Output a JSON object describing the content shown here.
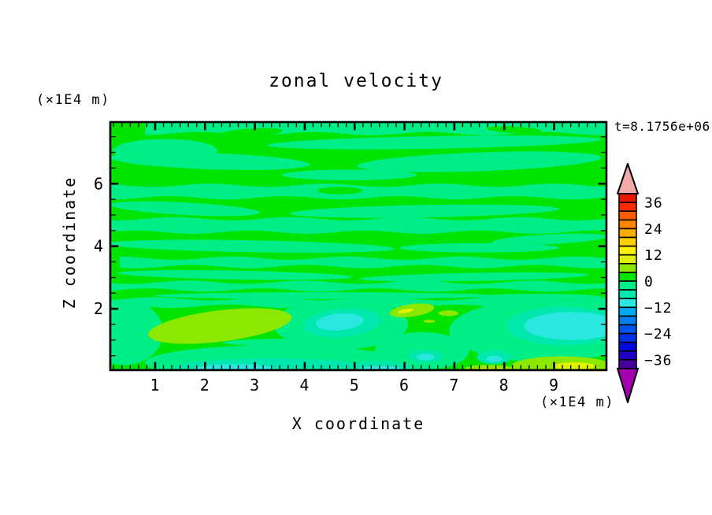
{
  "chart_data": {
    "type": "heatmap",
    "subtype": "filled_contour",
    "title": "zonal velocity",
    "t_annotation": "t=8.1756e+06",
    "xlabel": "X coordinate",
    "ylabel": "Z coordinate",
    "x_unit": "(×1E4 m)",
    "y_unit": "(×1E4 m)",
    "x_major_ticks": [
      1,
      2,
      3,
      4,
      5,
      6,
      7,
      8,
      9
    ],
    "z_major_ticks": [
      2,
      4,
      6
    ],
    "x_range": [
      0.1,
      10.05
    ],
    "z_range": [
      0.04,
      7.97
    ],
    "x_minor_per_unit": 6,
    "z_minor_step": 0.5,
    "levels": {
      "min": -40,
      "max": 40,
      "step": 4
    },
    "colorbar_labels": [
      36,
      24,
      12,
      0,
      -12,
      -24,
      -36
    ],
    "palette_top_to_bottom": [
      "#e81800",
      "#ff2a00",
      "#ff5c00",
      "#ff8700",
      "#ffab00",
      "#ffcf00",
      "#fff200",
      "#dff200",
      "#8ce800",
      "#00e400",
      "#00ee87",
      "#00e8ad",
      "#2ae8e0",
      "#00aaf2",
      "#0080f2",
      "#0055f0",
      "#0030e8",
      "#0008e0",
      "#2000c0",
      "#46009d"
    ],
    "over_color": "#f4a9a9",
    "under_color": "#a000b0",
    "background_band_value": 2,
    "field_summary": "Zonal velocity cross-section: mostly near-zero values forming wavy horizontal stripes alternating between the 0..4 band (green) and -4..0 band (spring green); below z=2 appear stronger features: positive patches (4..12, chartreuse/yellow) and negative patches (-4..-12, teal/cyan).",
    "features": [
      {
        "v": -2,
        "b": [
          0.8,
          10.05,
          7.6,
          8.02,
          0.5
        ]
      },
      {
        "v": -2,
        "e": [
          6.6,
          7.32,
          3.35,
          0.2,
          -1
        ]
      },
      {
        "v": -2,
        "e": [
          1.2,
          7.05,
          1.05,
          0.38,
          0
        ]
      },
      {
        "v": -2,
        "e": [
          2.1,
          6.72,
          2.0,
          0.26,
          2
        ]
      },
      {
        "v": -2,
        "e": [
          7.5,
          6.7,
          2.45,
          0.3,
          -2
        ]
      },
      {
        "v": -2,
        "e": [
          4.9,
          6.28,
          1.35,
          0.17,
          0
        ]
      },
      {
        "v": -2,
        "b": [
          0.05,
          10.05,
          5.55,
          5.95,
          2.1
        ]
      },
      {
        "v": -2,
        "e": [
          1.6,
          5.2,
          1.5,
          0.2,
          3
        ]
      },
      {
        "v": -2,
        "e": [
          6.4,
          5.12,
          2.7,
          0.2,
          -1
        ]
      },
      {
        "v": -2,
        "b": [
          0.05,
          10.05,
          4.45,
          4.88,
          4.0
        ]
      },
      {
        "v": -2,
        "e": [
          8.9,
          4.22,
          1.15,
          0.16,
          -3
        ]
      },
      {
        "v": -2,
        "e": [
          2.9,
          4.0,
          2.9,
          0.19,
          1
        ]
      },
      {
        "v": -2,
        "e": [
          7.5,
          3.95,
          1.6,
          0.15,
          0
        ]
      },
      {
        "v": -2,
        "b": [
          0.28,
          10.05,
          3.35,
          3.62,
          0.9
        ]
      },
      {
        "v": -2,
        "e": [
          2.6,
          3.08,
          2.35,
          0.14,
          1
        ]
      },
      {
        "v": -2,
        "e": [
          7.4,
          3.02,
          2.3,
          0.13,
          -1
        ]
      },
      {
        "v": -2,
        "b": [
          0.05,
          10.05,
          2.6,
          2.85,
          3.3
        ]
      },
      {
        "v": -2,
        "e": [
          4.4,
          2.42,
          3.4,
          0.11,
          0
        ]
      },
      {
        "v": -2,
        "e": [
          8.7,
          2.38,
          1.25,
          0.1,
          0
        ]
      },
      {
        "v": -2,
        "b": [
          0.05,
          10.05,
          2.08,
          2.32,
          5.2
        ]
      },
      {
        "v": -2,
        "e": [
          0.38,
          1.25,
          0.78,
          1.05,
          0
        ]
      },
      {
        "v": -2,
        "e": [
          4.72,
          1.5,
          1.35,
          0.8,
          0
        ]
      },
      {
        "v": -2,
        "e": [
          8.8,
          1.3,
          1.9,
          1.0,
          0
        ]
      },
      {
        "v": -2,
        "e": [
          3.4,
          0.28,
          2.6,
          0.55,
          0
        ]
      },
      {
        "v": -2,
        "e": [
          6.35,
          0.65,
          0.95,
          0.6,
          0
        ]
      },
      {
        "v": -2,
        "e": [
          4.05,
          0.92,
          1.7,
          0.13,
          0
        ]
      },
      {
        "v": 2,
        "e": [
          2.9,
          7.62,
          0.65,
          0.14,
          -4
        ]
      },
      {
        "v": 2,
        "e": [
          8.2,
          7.72,
          0.55,
          0.11,
          3
        ]
      },
      {
        "v": 2,
        "e": [
          4.7,
          5.78,
          0.45,
          0.12,
          0
        ]
      },
      {
        "v": 6,
        "e": [
          2.3,
          1.45,
          1.45,
          0.5,
          -7
        ]
      },
      {
        "v": 6,
        "e": [
          6.15,
          1.95,
          0.45,
          0.2,
          -8
        ]
      },
      {
        "v": 6,
        "e": [
          6.88,
          1.86,
          0.2,
          0.09,
          0
        ]
      },
      {
        "v": 6,
        "e": [
          6.5,
          1.6,
          0.12,
          0.05,
          0
        ]
      },
      {
        "v": 6,
        "e": [
          9.15,
          0.18,
          1.0,
          0.3,
          0
        ]
      },
      {
        "v": 6,
        "e": [
          4.4,
          0.07,
          0.4,
          0.1,
          0
        ]
      },
      {
        "v": 6,
        "e": [
          7.7,
          0.08,
          0.5,
          0.13,
          0
        ]
      },
      {
        "v": 10,
        "e": [
          6.02,
          1.93,
          0.16,
          0.06,
          -10
        ]
      },
      {
        "v": 10,
        "e": [
          9.4,
          0.17,
          0.42,
          0.12,
          0
        ]
      },
      {
        "v": 10,
        "e": [
          7.62,
          0.05,
          0.18,
          0.06,
          0
        ]
      },
      {
        "v": 10,
        "e": [
          7.95,
          0.06,
          0.12,
          0.05,
          0
        ]
      },
      {
        "v": -6,
        "e": [
          4.75,
          1.55,
          0.78,
          0.45,
          -5
        ]
      },
      {
        "v": -6,
        "e": [
          9.2,
          1.45,
          1.15,
          0.62,
          0
        ]
      },
      {
        "v": -6,
        "e": [
          3.3,
          0.12,
          1.9,
          0.3,
          0
        ]
      },
      {
        "v": -6,
        "e": [
          5.45,
          0.1,
          0.7,
          0.22,
          0
        ]
      },
      {
        "v": -6,
        "e": [
          6.42,
          0.48,
          0.35,
          0.2,
          0
        ]
      },
      {
        "v": -6,
        "e": [
          7.8,
          0.45,
          0.35,
          0.22,
          0
        ]
      },
      {
        "v": -10,
        "e": [
          4.7,
          1.58,
          0.48,
          0.27,
          -5
        ]
      },
      {
        "v": -10,
        "e": [
          9.35,
          1.45,
          0.95,
          0.45,
          0
        ]
      },
      {
        "v": -10,
        "e": [
          2.6,
          0.07,
          0.8,
          0.16,
          0
        ]
      },
      {
        "v": -10,
        "e": [
          5.5,
          0.05,
          0.45,
          0.12,
          0
        ]
      },
      {
        "v": -10,
        "e": [
          6.42,
          0.46,
          0.18,
          0.1,
          0
        ]
      },
      {
        "v": -10,
        "e": [
          7.8,
          0.4,
          0.16,
          0.1,
          0
        ]
      }
    ]
  }
}
